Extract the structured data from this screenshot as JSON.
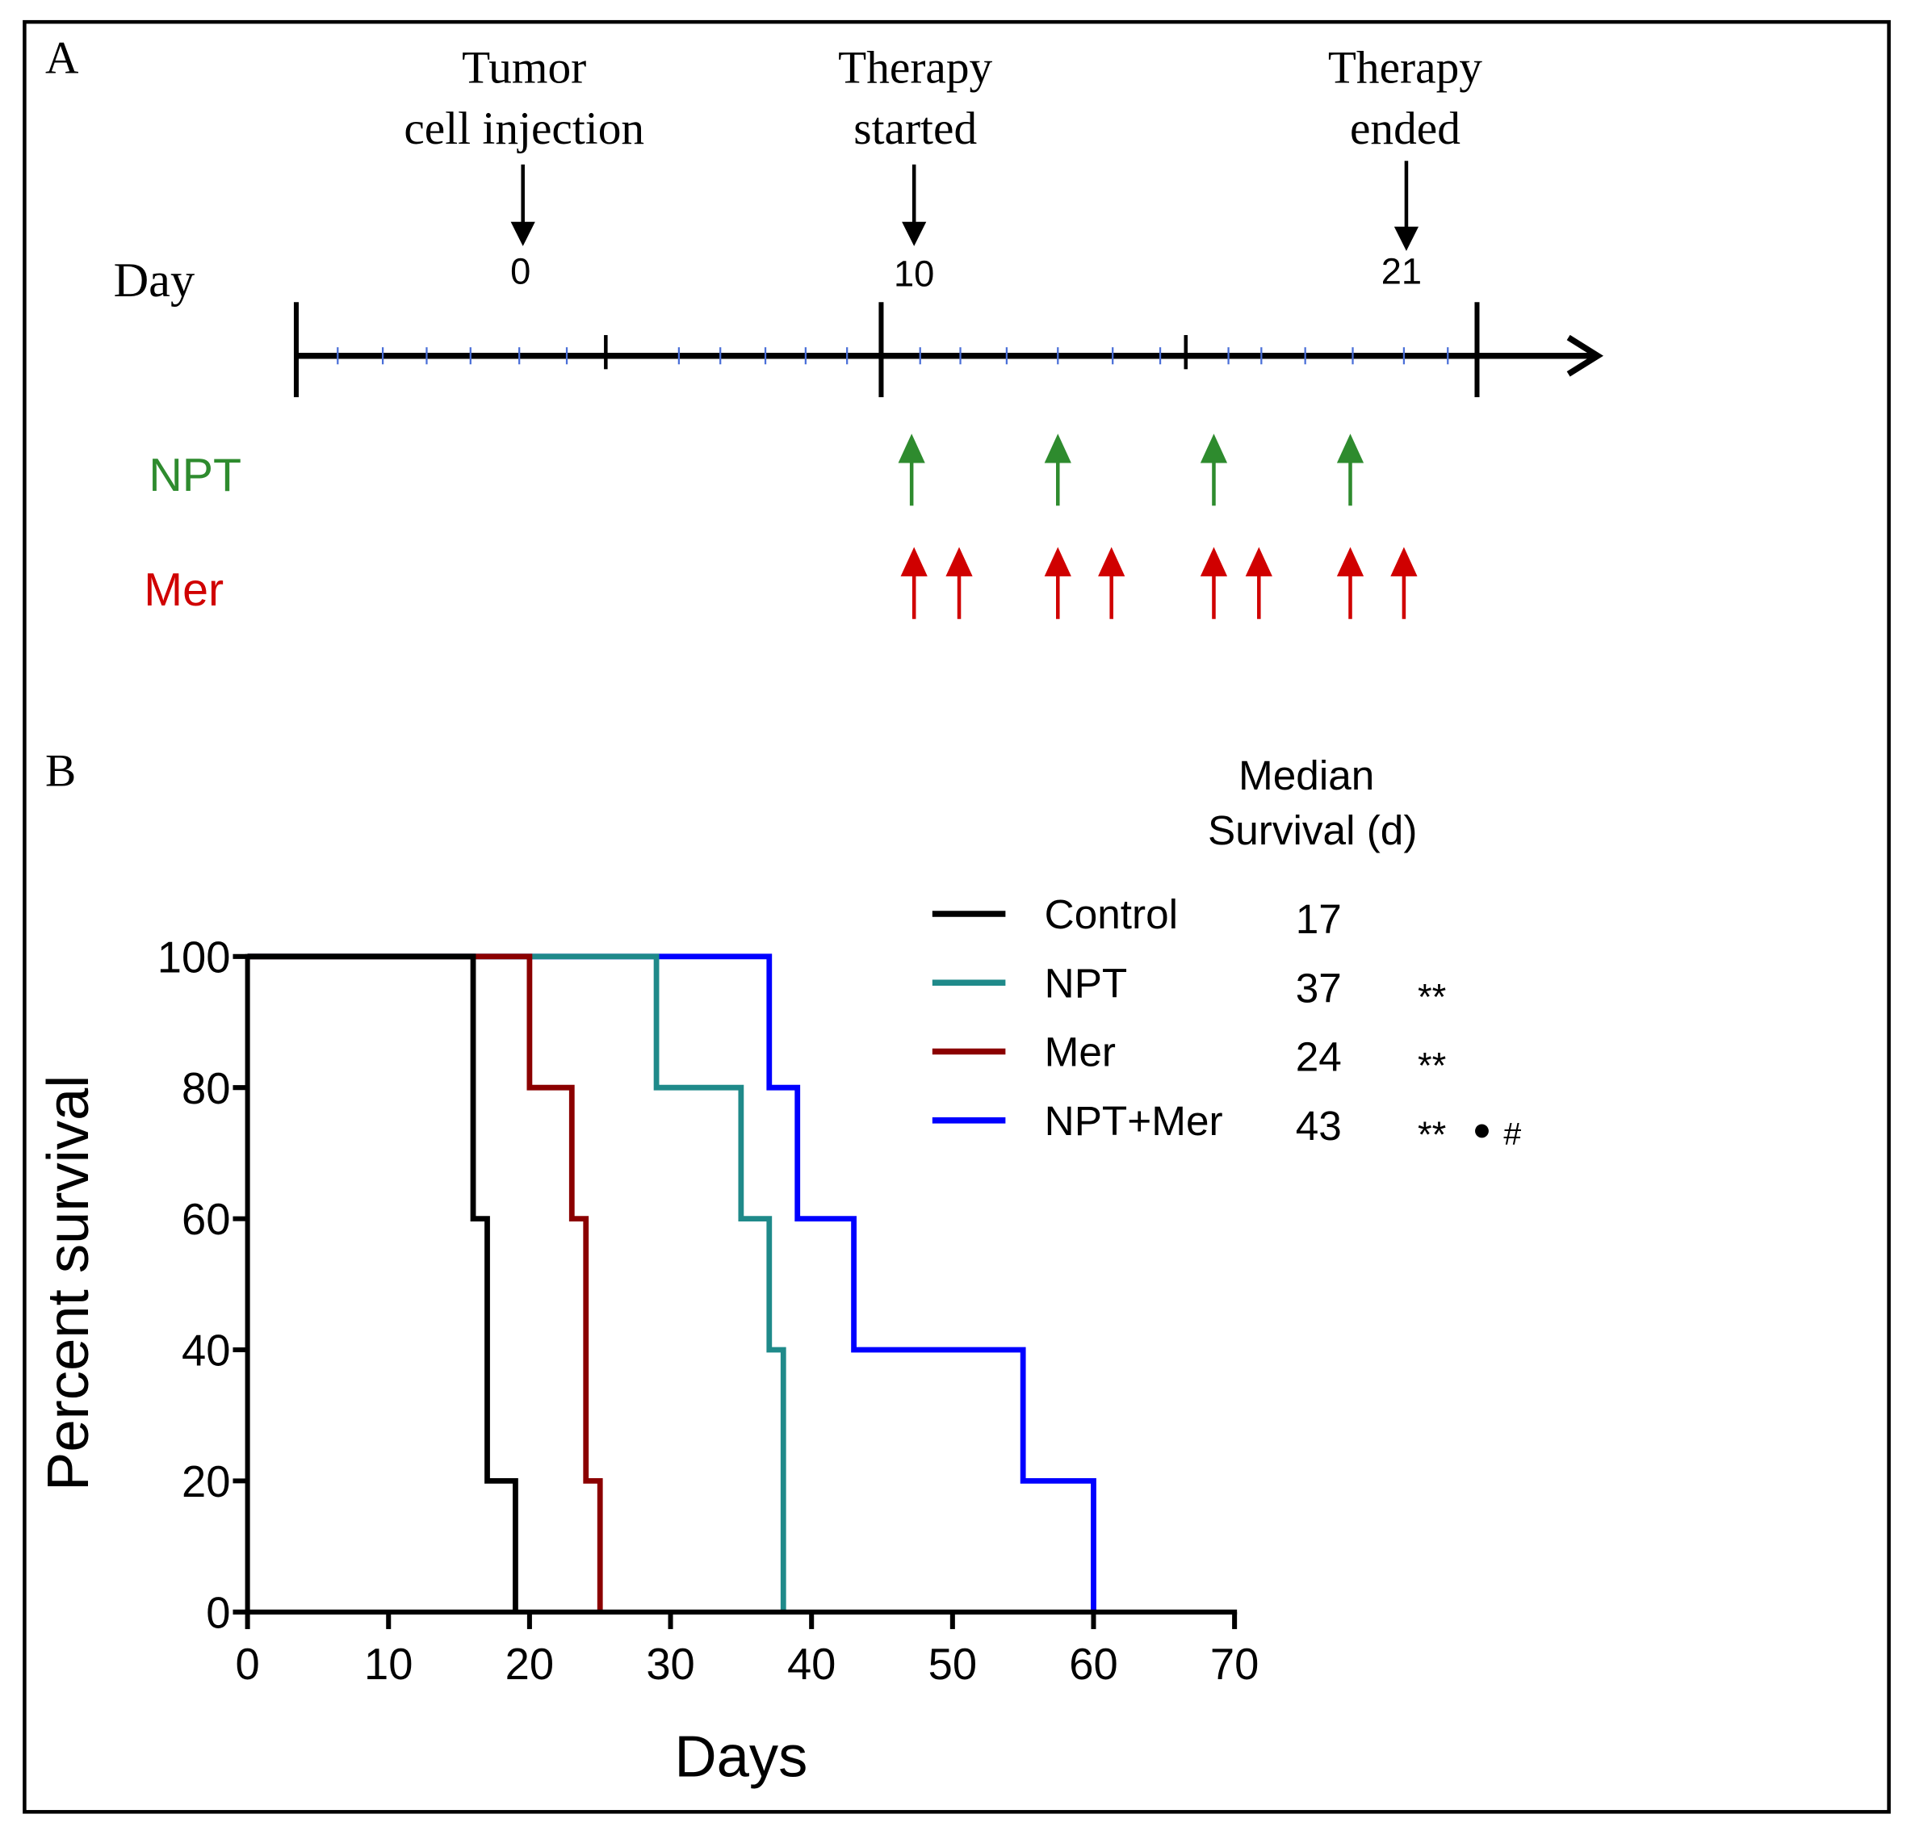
{
  "panel_a": {
    "label": "A",
    "day_label": "Day",
    "events": [
      {
        "line1": "Tumor",
        "line2": "cell injection",
        "day": "0"
      },
      {
        "line1": "Therapy",
        "line2": "started",
        "day": "10"
      },
      {
        "line1": "Therapy",
        "line2": "ended",
        "day": "21"
      }
    ],
    "npt_label": "NPT",
    "mer_label": "Mer",
    "colors": {
      "npt": "#2e8b2e",
      "mer": "#d00000"
    }
  },
  "panel_b": {
    "label": "B",
    "median_header_1": "Median",
    "median_header_2": "Survival (d)"
  },
  "chart_data": {
    "type": "line",
    "step": true,
    "title": "",
    "xlabel": "Days",
    "ylabel": "Percent survival",
    "xlim": [
      0,
      70
    ],
    "ylim": [
      0,
      100
    ],
    "xticks": [
      "0",
      "10",
      "20",
      "30",
      "40",
      "50",
      "60",
      "70"
    ],
    "yticks": [
      "0",
      "20",
      "40",
      "60",
      "80",
      "100"
    ],
    "grid": false,
    "legend_position": "top-right",
    "series": [
      {
        "name": "Control",
        "color": "#000000",
        "median": "17",
        "sig": "**",
        "sig2": "",
        "sig3": "",
        "points": [
          [
            0,
            100
          ],
          [
            16,
            100
          ],
          [
            16,
            60
          ],
          [
            17,
            60
          ],
          [
            17,
            20
          ],
          [
            19,
            20
          ],
          [
            19,
            0
          ]
        ]
      },
      {
        "name": "NPT",
        "color": "#1f8a8a",
        "median": "37",
        "sig": "**",
        "sig2": "",
        "sig3": "",
        "points": [
          [
            0,
            100
          ],
          [
            29,
            100
          ],
          [
            29,
            80
          ],
          [
            35,
            80
          ],
          [
            35,
            60
          ],
          [
            37,
            60
          ],
          [
            37,
            40
          ],
          [
            38,
            40
          ],
          [
            38,
            0
          ]
        ]
      },
      {
        "name": "Mer",
        "color": "#8b0000",
        "median": "24",
        "sig": "**",
        "sig2": "",
        "sig3": "",
        "points": [
          [
            0,
            100
          ],
          [
            20,
            100
          ],
          [
            20,
            80
          ],
          [
            23,
            80
          ],
          [
            23,
            60
          ],
          [
            24,
            60
          ],
          [
            24,
            20
          ],
          [
            25,
            20
          ],
          [
            25,
            0
          ]
        ]
      },
      {
        "name": "NPT+Mer",
        "color": "#0000ff",
        "median": "43",
        "sig": "**",
        "sig2": "●",
        "sig3": "#",
        "points": [
          [
            0,
            100
          ],
          [
            37,
            100
          ],
          [
            37,
            80
          ],
          [
            39,
            80
          ],
          [
            39,
            60
          ],
          [
            43,
            60
          ],
          [
            43,
            40
          ],
          [
            55,
            40
          ],
          [
            55,
            20
          ],
          [
            60,
            20
          ],
          [
            60,
            0
          ]
        ]
      }
    ]
  }
}
